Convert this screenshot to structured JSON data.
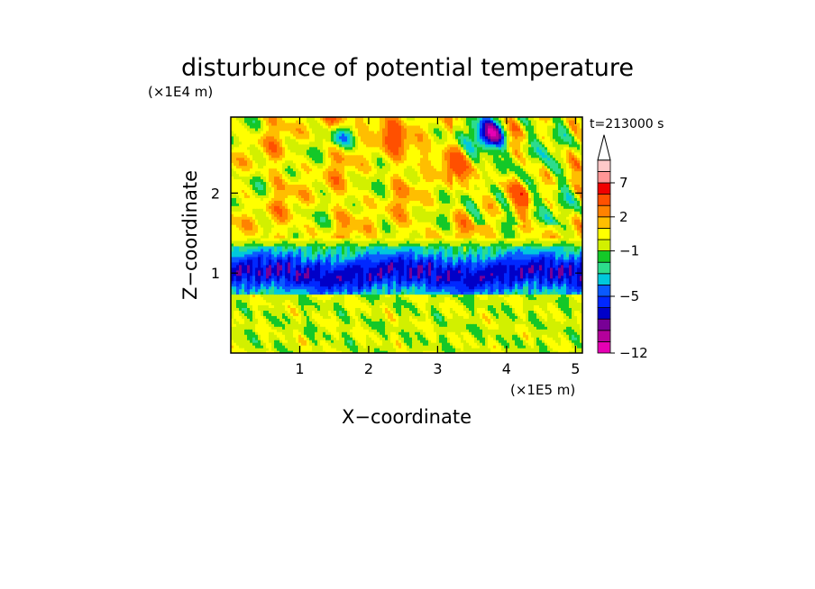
{
  "chart_data": {
    "type": "heatmap",
    "title": "disturbunce of potential temperature",
    "time_label": "t=213000 s",
    "xlabel": "X−coordinate",
    "ylabel": "Z−coordinate",
    "x_unit": "(×1E5 m)",
    "y_unit": "(×1E4 m)",
    "xlim": [
      0,
      5.1
    ],
    "ylim": [
      0,
      2.95
    ],
    "x_ticks": [
      "1",
      "2",
      "3",
      "4",
      "5"
    ],
    "y_ticks": [
      "1",
      "2"
    ],
    "colorbar": {
      "tick_labels": [
        "7",
        "2",
        "−1",
        "−5",
        "−12"
      ],
      "levels": [
        -12,
        -10,
        -9,
        -7,
        -6,
        -5,
        -4,
        -3,
        -2,
        -1,
        0,
        1,
        2,
        3,
        5,
        7,
        9
      ],
      "colors": [
        "#e600b4",
        "#b4009b",
        "#780096",
        "#0000c8",
        "#0028ff",
        "#0a5aff",
        "#00c8dc",
        "#2ddc8c",
        "#14c828",
        "#d2f000",
        "#ffff00",
        "#ffbe00",
        "#ff8200",
        "#ff5000",
        "#f00000",
        "#ff9696",
        "#ffc8c8"
      ],
      "extend": "max"
    }
  }
}
